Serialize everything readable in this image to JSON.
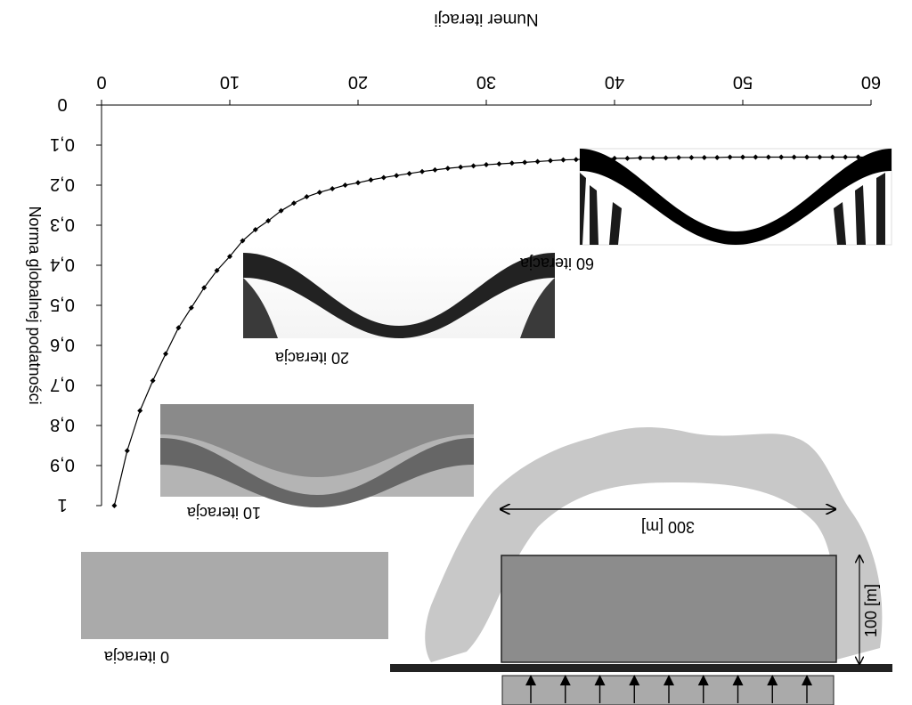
{
  "chart_data": {
    "type": "line",
    "xlabel": "Numer iteracji",
    "ylabel": "Norma globalnej podatności",
    "xlim": [
      0,
      60
    ],
    "ylim": [
      0,
      1
    ],
    "y_inverted": true,
    "x_ticks": [
      "0",
      "10",
      "20",
      "30",
      "40",
      "50",
      "60"
    ],
    "y_ticks": [
      "0",
      "0,1",
      "0,2",
      "0,3",
      "0,4",
      "0,5",
      "0,6",
      "0,7",
      "0,8",
      "0,9",
      "1"
    ],
    "grid": false,
    "series": [
      {
        "marker": "diamond",
        "x": [
          1,
          2,
          3,
          4,
          5,
          6,
          7,
          8,
          9,
          10,
          11,
          12,
          13,
          14,
          15,
          16,
          17,
          18,
          19,
          20,
          21,
          22,
          23,
          24,
          25,
          26,
          27,
          28,
          29,
          30,
          31,
          32,
          33,
          34,
          35,
          36,
          37,
          38,
          39,
          40,
          41,
          42,
          43,
          44,
          45,
          46,
          47,
          48,
          49,
          50,
          51,
          52,
          53,
          54,
          55,
          56,
          57,
          58,
          59,
          60
        ],
        "y": [
          1.0,
          0.863,
          0.763,
          0.688,
          0.621,
          0.556,
          0.506,
          0.456,
          0.413,
          0.378,
          0.339,
          0.311,
          0.289,
          0.264,
          0.245,
          0.229,
          0.218,
          0.209,
          0.2,
          0.194,
          0.187,
          0.181,
          0.176,
          0.171,
          0.166,
          0.162,
          0.158,
          0.155,
          0.152,
          0.149,
          0.147,
          0.145,
          0.143,
          0.141,
          0.139,
          0.137,
          0.136,
          0.135,
          0.134,
          0.133,
          0.133,
          0.132,
          0.132,
          0.132,
          0.131,
          0.131,
          0.131,
          0.131,
          0.13,
          0.13,
          0.13,
          0.13,
          0.13,
          0.13,
          0.13,
          0.13,
          0.13,
          0.13,
          0.13,
          0.13
        ]
      }
    ],
    "annotations": [
      {
        "label": "0 iteracja"
      },
      {
        "label": "10 iteracja"
      },
      {
        "label": "20 iteracja"
      },
      {
        "label": "60 iteracja"
      }
    ],
    "domain_sketch": {
      "width_label": "300 [m]",
      "height_label": "100 [m]",
      "load_arrows": 9
    }
  }
}
